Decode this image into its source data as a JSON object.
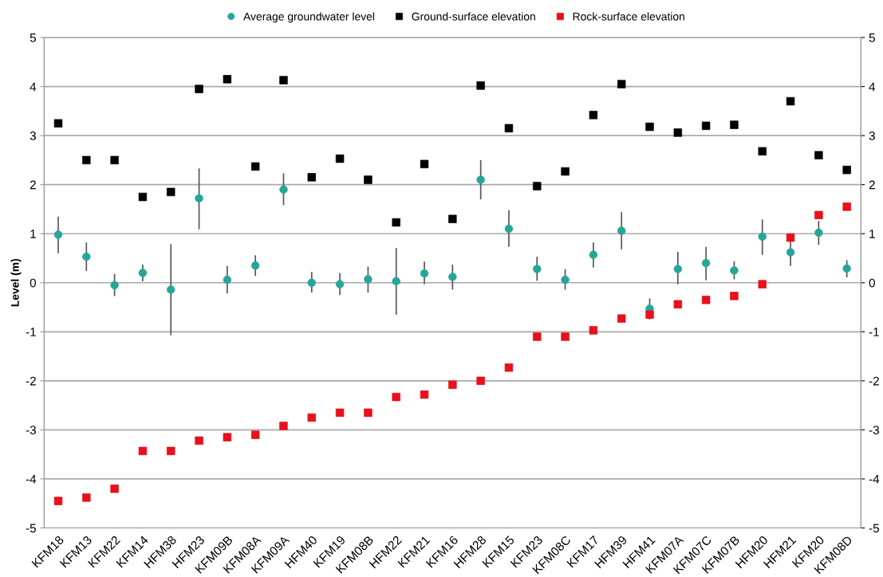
{
  "chart_data": {
    "type": "scatter",
    "ylabel": "Level (m)",
    "categories": [
      "KFM18",
      "KFM13",
      "KFM22",
      "KFM14",
      "HFM38",
      "HFM23",
      "KFM09B",
      "KFM08A",
      "KFM09A",
      "HFM40",
      "KFM19",
      "KFM08B",
      "HFM22",
      "KFM21",
      "KFM16",
      "HFM28",
      "KFM15",
      "KFM23",
      "KFM08C",
      "KFM17",
      "HFM39",
      "HFM41",
      "KFM07A",
      "KFM07C",
      "KFM07B",
      "HFM20",
      "HFM21",
      "KFM20",
      "KFM08D"
    ],
    "series": [
      {
        "name": "Average groundwater level",
        "color": "#26a69a",
        "marker": "circle",
        "values": [
          0.98,
          0.53,
          -0.05,
          0.2,
          -0.14,
          1.72,
          0.06,
          0.35,
          1.9,
          0.0,
          -0.03,
          0.07,
          0.03,
          0.19,
          0.12,
          2.1,
          1.1,
          0.28,
          0.06,
          0.57,
          1.06,
          -0.53,
          0.28,
          0.4,
          0.25,
          0.94,
          0.62,
          1.02,
          0.29
        ],
        "errors": [
          [
            0.6,
            1.35
          ],
          [
            0.24,
            0.82
          ],
          [
            -0.27,
            0.18
          ],
          [
            0.03,
            0.37
          ],
          [
            -1.07,
            0.79
          ],
          [
            1.09,
            2.33
          ],
          [
            -0.22,
            0.34
          ],
          [
            0.14,
            0.56
          ],
          [
            1.58,
            2.23
          ],
          [
            -0.2,
            0.22
          ],
          [
            -0.25,
            0.2
          ],
          [
            -0.2,
            0.33
          ],
          [
            -0.65,
            0.71
          ],
          [
            -0.03,
            0.43
          ],
          [
            -0.14,
            0.37
          ],
          [
            1.7,
            2.5
          ],
          [
            0.73,
            1.48
          ],
          [
            0.04,
            0.53
          ],
          [
            -0.14,
            0.28
          ],
          [
            0.31,
            0.82
          ],
          [
            0.68,
            1.44
          ],
          [
            -0.75,
            -0.32
          ],
          [
            -0.03,
            0.63
          ],
          [
            0.05,
            0.73
          ],
          [
            0.07,
            0.44
          ],
          [
            0.57,
            1.29
          ],
          [
            0.34,
            0.86
          ],
          [
            0.77,
            1.26
          ],
          [
            0.11,
            0.46
          ]
        ]
      },
      {
        "name": "Ground-surface elevation",
        "color": "#000000",
        "marker": "square",
        "values": [
          3.25,
          2.5,
          2.5,
          1.75,
          1.85,
          3.95,
          4.15,
          2.37,
          4.13,
          2.15,
          2.53,
          2.1,
          1.23,
          2.42,
          1.3,
          4.02,
          3.15,
          1.97,
          2.27,
          3.42,
          4.05,
          3.18,
          3.06,
          3.2,
          3.22,
          2.68,
          3.7,
          2.6,
          2.3
        ]
      },
      {
        "name": "Rock-surface elevation",
        "color": "#e8101a",
        "marker": "square",
        "values": [
          -4.45,
          -4.38,
          -4.2,
          -3.43,
          -3.43,
          -3.22,
          -3.15,
          -3.1,
          -2.92,
          -2.75,
          -2.65,
          -2.65,
          -2.33,
          -2.28,
          -2.08,
          -2.0,
          -1.73,
          -1.1,
          -1.1,
          -0.97,
          -0.73,
          -0.65,
          -0.44,
          -0.35,
          -0.27,
          -0.03,
          0.92,
          1.38,
          1.55
        ]
      }
    ],
    "ylim": [
      -5,
      5
    ],
    "yticks": [
      -5,
      -4,
      -3,
      -2,
      -1,
      0,
      1,
      2,
      3,
      4,
      5
    ],
    "y2lim": [
      -5,
      5
    ],
    "y2ticks": [
      -5,
      -4,
      -3,
      -2,
      -1,
      0,
      1,
      2,
      3,
      4,
      5
    ],
    "grid": "y",
    "legend": "top"
  }
}
